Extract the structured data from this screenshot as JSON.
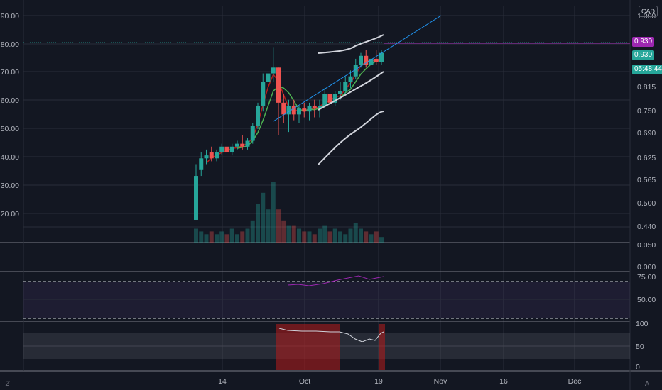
{
  "chart_data": {
    "type": "candlestick",
    "currency": "CAD",
    "left_axis_ticks": [
      "90.00",
      "80.00",
      "70.00",
      "60.00",
      "50.00",
      "40.00",
      "30.00",
      "20.00"
    ],
    "right_axis_ticks": [
      "1.000",
      "0.815",
      "0.750",
      "0.690",
      "0.625",
      "0.565",
      "0.500",
      "0.440",
      "0.050",
      "0.000"
    ],
    "x_axis_ticks": [
      "14",
      "Oct",
      "19",
      "Nov",
      "16",
      "Dec"
    ],
    "price_label": "0.930",
    "last_price_label": "0.930",
    "countdown_label": "05:48:44",
    "ylim": [
      15,
      93
    ],
    "candles": [
      {
        "o": 23,
        "h": 42,
        "l": 23,
        "c": 38
      },
      {
        "o": 40,
        "h": 46,
        "l": 38,
        "c": 44
      },
      {
        "o": 44,
        "h": 47,
        "l": 42,
        "c": 45
      },
      {
        "o": 46,
        "h": 48,
        "l": 43,
        "c": 44
      },
      {
        "o": 44,
        "h": 47,
        "l": 43,
        "c": 46
      },
      {
        "o": 46,
        "h": 49,
        "l": 45,
        "c": 48
      },
      {
        "o": 48,
        "h": 49,
        "l": 45,
        "c": 46
      },
      {
        "o": 46,
        "h": 49,
        "l": 45,
        "c": 48
      },
      {
        "o": 48,
        "h": 50,
        "l": 47,
        "c": 49
      },
      {
        "o": 49,
        "h": 52,
        "l": 47,
        "c": 48
      },
      {
        "o": 48,
        "h": 51,
        "l": 47,
        "c": 50
      },
      {
        "o": 50,
        "h": 56,
        "l": 49,
        "c": 55
      },
      {
        "o": 55,
        "h": 63,
        "l": 54,
        "c": 62
      },
      {
        "o": 62,
        "h": 73,
        "l": 60,
        "c": 70
      },
      {
        "o": 70,
        "h": 75,
        "l": 67,
        "c": 73
      },
      {
        "o": 73,
        "h": 82,
        "l": 70,
        "c": 75
      },
      {
        "o": 75,
        "h": 75,
        "l": 52,
        "c": 63
      },
      {
        "o": 63,
        "h": 66,
        "l": 56,
        "c": 59
      },
      {
        "o": 59,
        "h": 64,
        "l": 53,
        "c": 62
      },
      {
        "o": 62,
        "h": 64,
        "l": 57,
        "c": 59
      },
      {
        "o": 59,
        "h": 62,
        "l": 56,
        "c": 61
      },
      {
        "o": 61,
        "h": 63,
        "l": 58,
        "c": 60
      },
      {
        "o": 60,
        "h": 63,
        "l": 57,
        "c": 62
      },
      {
        "o": 62,
        "h": 64,
        "l": 58,
        "c": 61
      },
      {
        "o": 61,
        "h": 64,
        "l": 58,
        "c": 62
      },
      {
        "o": 62,
        "h": 68,
        "l": 61,
        "c": 66
      },
      {
        "o": 66,
        "h": 68,
        "l": 62,
        "c": 63
      },
      {
        "o": 63,
        "h": 67,
        "l": 62,
        "c": 66
      },
      {
        "o": 66,
        "h": 70,
        "l": 64,
        "c": 67
      },
      {
        "o": 67,
        "h": 72,
        "l": 66,
        "c": 70
      },
      {
        "o": 70,
        "h": 74,
        "l": 68,
        "c": 72
      },
      {
        "o": 72,
        "h": 78,
        "l": 71,
        "c": 76
      },
      {
        "o": 76,
        "h": 80,
        "l": 75,
        "c": 79
      },
      {
        "o": 79,
        "h": 81,
        "l": 75,
        "c": 76
      },
      {
        "o": 76,
        "h": 80,
        "l": 75,
        "c": 78
      },
      {
        "o": 78,
        "h": 81,
        "l": 76,
        "c": 77
      },
      {
        "o": 77,
        "h": 81,
        "l": 76,
        "c": 80
      }
    ],
    "volumes": [
      5,
      4,
      3,
      4,
      3,
      4,
      3,
      5,
      3,
      4,
      5,
      8,
      14,
      18,
      12,
      22,
      12,
      8,
      6,
      6,
      5,
      4,
      4,
      3,
      5,
      6,
      4,
      5,
      4,
      3,
      5,
      7,
      5,
      4,
      3,
      4,
      2
    ],
    "rsi_levels": [
      70,
      30
    ],
    "rsi_axis_ticks": [
      "75.00",
      "50.00"
    ],
    "stoch_axis_ticks": [
      "100",
      "50",
      "0"
    ]
  }
}
